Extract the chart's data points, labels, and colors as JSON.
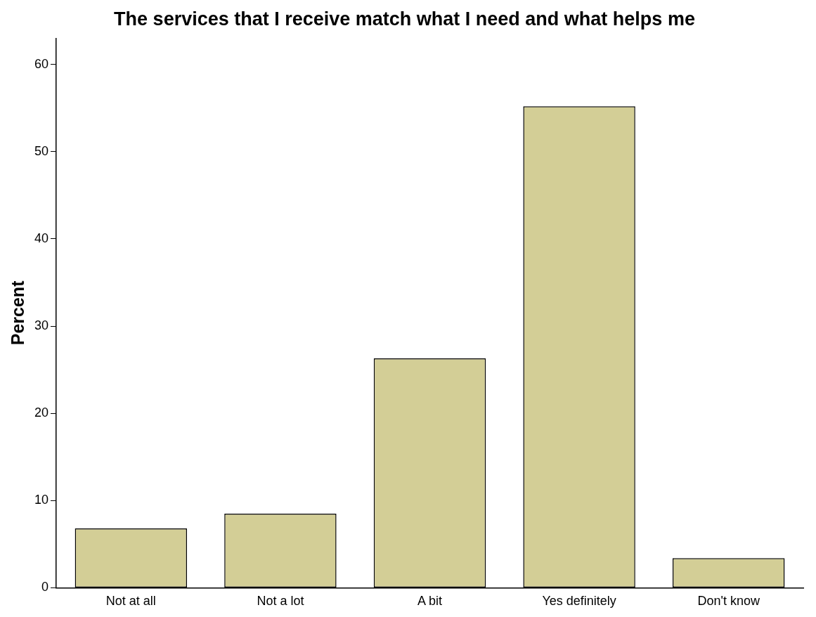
{
  "chart_data": {
    "type": "bar",
    "title": "The services that I receive match what I need and what helps me",
    "ylabel": "Percent",
    "categories": [
      "Not at all",
      "Not a lot",
      "A bit",
      "Yes definitely",
      "Don't know"
    ],
    "values": [
      6.8,
      8.5,
      26.3,
      55.2,
      3.4
    ],
    "color": "#d3ce96",
    "ylim": [
      0,
      63
    ],
    "yticks": [
      0,
      10,
      20,
      30,
      40,
      50,
      60
    ],
    "grid": false,
    "legend": false
  }
}
